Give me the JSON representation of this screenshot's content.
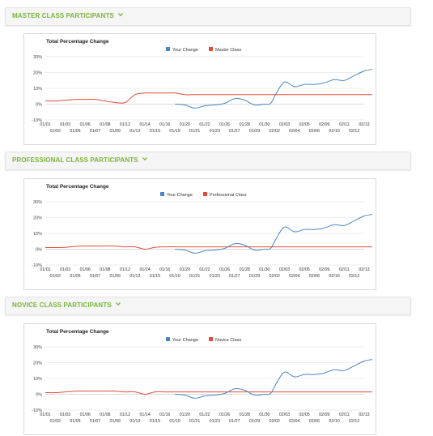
{
  "colors": {
    "accent": "#7bb33a",
    "your_change": "#4a86c5",
    "class_series": "#e04b3b",
    "grid": "#e6e6e6"
  },
  "sections": [
    {
      "title": "MASTER CLASS PARTICIPANTS",
      "icon": "chevron-down-icon"
    },
    {
      "title": "PROFESSIONAL CLASS PARTICIPANTS",
      "icon": "chevron-down-icon"
    },
    {
      "title": "NOVICE CLASS PARTICIPANTS",
      "icon": "chevron-down-icon"
    }
  ],
  "chart_data": [
    {
      "type": "line",
      "title": "Total Percentage Change",
      "ylim": [
        -10,
        30
      ],
      "yticks": [
        "30%",
        "20%",
        "10%",
        "0%",
        "-10%"
      ],
      "ytick_values": [
        30,
        20,
        10,
        0,
        -10
      ],
      "legend_position": "top",
      "grid": true,
      "x_top_labels": [
        "01/01",
        "01/03",
        "01/06",
        "01/08",
        "01/12",
        "01/14",
        "01/16",
        "01/20",
        "01/22",
        "01/26",
        "01/28",
        "01/30",
        "02/03",
        "02/05",
        "02/09",
        "02/11",
        "02/13"
      ],
      "x_bottom_labels": [
        "01/02",
        "01/05",
        "01/07",
        "01/09",
        "01/13",
        "01/15",
        "01/19",
        "01/21",
        "01/23",
        "01/27",
        "01/29",
        "02/02",
        "02/04",
        "02/06",
        "02/10",
        "02/12"
      ],
      "series": [
        {
          "name": "Your Change",
          "color": "#4a86c5",
          "x": [
            6.5,
            7,
            7.5,
            8,
            8.5,
            9,
            9.5,
            10,
            10.5,
            11,
            11.3,
            11.6,
            12,
            12.5,
            13,
            13.5,
            14,
            14.5,
            15,
            15.5,
            16,
            16.4
          ],
          "y": [
            0,
            -0.5,
            -2.5,
            -1,
            -0.5,
            0.5,
            3.5,
            2.5,
            -0.5,
            0,
            0.5,
            7,
            14,
            11,
            12.5,
            12.5,
            13.5,
            15.5,
            15,
            18,
            21,
            22
          ]
        },
        {
          "name": "Master Class",
          "color": "#e04b3b",
          "x": [
            0,
            0.5,
            1,
            1.5,
            2,
            2.5,
            3,
            3.5,
            4,
            4.5,
            5,
            5.5,
            6,
            6.5,
            7,
            7.5,
            8,
            9,
            10,
            11,
            12,
            13,
            14,
            15,
            16,
            16.4
          ],
          "y": [
            2,
            2,
            2.5,
            3,
            3,
            3,
            2,
            1,
            1,
            6,
            7,
            7,
            7,
            7,
            6,
            6,
            6,
            6,
            6,
            6,
            6,
            6,
            6,
            6,
            6,
            6
          ]
        }
      ]
    },
    {
      "type": "line",
      "title": "Total Percentage Change",
      "ylim": [
        -10,
        30
      ],
      "yticks": [
        "30%",
        "20%",
        "10%",
        "0%",
        "-10%"
      ],
      "ytick_values": [
        30,
        20,
        10,
        0,
        -10
      ],
      "legend_position": "top",
      "grid": true,
      "x_top_labels": [
        "01/01",
        "01/03",
        "01/06",
        "01/08",
        "01/12",
        "01/14",
        "01/16",
        "01/20",
        "01/22",
        "01/26",
        "01/28",
        "01/30",
        "02/03",
        "02/05",
        "02/09",
        "02/11",
        "02/13"
      ],
      "x_bottom_labels": [
        "01/02",
        "01/05",
        "01/07",
        "01/09",
        "01/13",
        "01/15",
        "01/19",
        "01/21",
        "01/23",
        "01/27",
        "01/29",
        "02/02",
        "02/04",
        "02/06",
        "02/10",
        "02/12"
      ],
      "series": [
        {
          "name": "Your Change",
          "color": "#4a86c5",
          "x": [
            6.5,
            7,
            7.5,
            8,
            8.5,
            9,
            9.5,
            10,
            10.5,
            11,
            11.3,
            11.6,
            12,
            12.5,
            13,
            13.5,
            14,
            14.5,
            15,
            15.5,
            16,
            16.4
          ],
          "y": [
            0,
            -0.5,
            -2.5,
            -1,
            -0.5,
            0.5,
            3.5,
            2.5,
            -0.5,
            0,
            0.5,
            7,
            14,
            11,
            12.5,
            12.5,
            13.5,
            15.5,
            15,
            18,
            21,
            22
          ]
        },
        {
          "name": "Professional Class",
          "color": "#e04b3b",
          "x": [
            0,
            0.5,
            1,
            1.5,
            2,
            2.5,
            3,
            3.5,
            4,
            4.5,
            5,
            5.5,
            6,
            7,
            8,
            9,
            10,
            11,
            12,
            13,
            14,
            15,
            16,
            16.4
          ],
          "y": [
            1,
            1,
            1.2,
            1.8,
            2,
            2,
            2,
            2,
            1.5,
            1.5,
            0,
            1.2,
            1.5,
            1.5,
            1.5,
            1.5,
            1.5,
            1.5,
            1.5,
            1.5,
            1.5,
            1.5,
            1.5,
            1.5
          ]
        }
      ]
    },
    {
      "type": "line",
      "title": "Total Percentage Change",
      "ylim": [
        -10,
        30
      ],
      "yticks": [
        "30%",
        "20%",
        "10%",
        "0%",
        "-10%"
      ],
      "ytick_values": [
        30,
        20,
        10,
        0,
        -10
      ],
      "legend_position": "top",
      "grid": true,
      "x_top_labels": [
        "01/01",
        "01/03",
        "01/06",
        "01/08",
        "01/12",
        "01/14",
        "01/16",
        "01/20",
        "01/22",
        "01/26",
        "01/28",
        "01/30",
        "02/03",
        "02/05",
        "02/09",
        "02/11",
        "02/13"
      ],
      "x_bottom_labels": [
        "01/02",
        "01/05",
        "01/07",
        "01/09",
        "01/13",
        "01/15",
        "01/19",
        "01/21",
        "01/23",
        "01/27",
        "01/29",
        "02/02",
        "02/04",
        "02/06",
        "02/10",
        "02/12"
      ],
      "series": [
        {
          "name": "Your Change",
          "color": "#4a86c5",
          "x": [
            6.5,
            7,
            7.5,
            8,
            8.5,
            9,
            9.5,
            10,
            10.5,
            11,
            11.3,
            11.6,
            12,
            12.5,
            13,
            13.5,
            14,
            14.5,
            15,
            15.5,
            16,
            16.4
          ],
          "y": [
            0,
            -0.5,
            -2.5,
            -1,
            -0.5,
            0.5,
            3.5,
            2.5,
            -0.5,
            0,
            0.5,
            7,
            14,
            11,
            12.5,
            12.5,
            13.5,
            15.5,
            15,
            18,
            21,
            22
          ]
        },
        {
          "name": "Novice Class",
          "color": "#e04b3b",
          "x": [
            0,
            0.5,
            1,
            1.5,
            2,
            2.5,
            3,
            3.5,
            4,
            4.5,
            5,
            5.5,
            6,
            7,
            8,
            9,
            10,
            11,
            12,
            13,
            14,
            15,
            16,
            16.4
          ],
          "y": [
            1,
            1,
            1.5,
            2,
            2,
            2,
            2,
            2,
            1.5,
            1.5,
            0,
            1.5,
            1.5,
            1.5,
            1.5,
            1.5,
            1.5,
            1.5,
            1.5,
            1.5,
            1.5,
            1.5,
            1.5,
            1.5
          ]
        }
      ]
    }
  ]
}
